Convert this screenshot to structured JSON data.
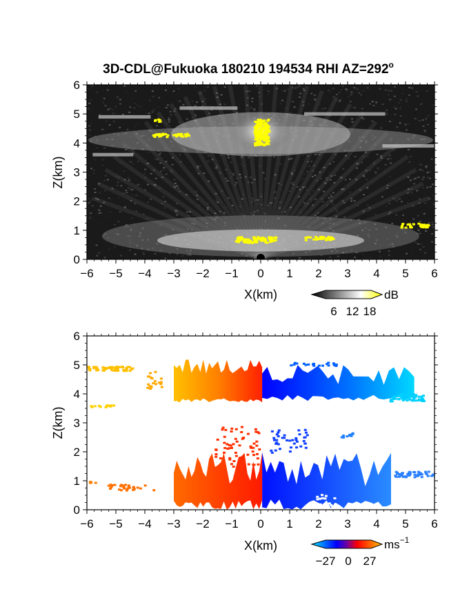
{
  "title": "3D-CDL@Fukuoka 180210 194534 RHI AZ=292",
  "title_superscript": "o",
  "chart_data": [
    {
      "type": "heatmap",
      "name": "reflectivity",
      "xlabel": "X(km)",
      "ylabel": "Z(km)",
      "xlim": [
        -6,
        6
      ],
      "ylim": [
        0,
        6
      ],
      "x_ticks": [
        "-6",
        "-5",
        "-4",
        "-3",
        "-2",
        "-1",
        "0",
        "1",
        "2",
        "3",
        "4",
        "5",
        "6"
      ],
      "y_ticks": [
        "0",
        "1",
        "2",
        "3",
        "4",
        "5",
        "6"
      ],
      "colorbar": {
        "unit": "dB",
        "ticks": [
          "6",
          "12",
          "18"
        ],
        "range": [
          0,
          24
        ],
        "colors": [
          "#000000",
          "#ffffff",
          "#ffff00"
        ]
      },
      "features": [
        {
          "label": "cloud-layer-upper",
          "x_range": [
            -6,
            6
          ],
          "z_range": [
            3.6,
            5.2
          ]
        },
        {
          "label": "cloud-core",
          "x_range": [
            -0.4,
            0.4
          ],
          "z_range": [
            3.9,
            4.8
          ]
        },
        {
          "label": "boundary-layer",
          "x_range": [
            -5,
            5
          ],
          "z_range": [
            0.4,
            1.3
          ]
        }
      ]
    },
    {
      "type": "heatmap",
      "name": "doppler-velocity",
      "xlabel": "X(km)",
      "ylabel": "Z(km)",
      "xlim": [
        -6,
        6
      ],
      "ylim": [
        0,
        6
      ],
      "x_ticks": [
        "-6",
        "-5",
        "-4",
        "-3",
        "-2",
        "-1",
        "0",
        "1",
        "2",
        "3",
        "4",
        "5",
        "6"
      ],
      "y_ticks": [
        "0",
        "1",
        "2",
        "3",
        "4",
        "5",
        "6"
      ],
      "colorbar": {
        "unit": "ms",
        "unit_superscript": "−1",
        "ticks": [
          "−27",
          "0",
          "27"
        ],
        "range": [
          -27,
          27
        ],
        "colors": [
          "#00e5ff",
          "#0000ff",
          "#ff0000",
          "#ffc000"
        ]
      },
      "features": [
        {
          "label": "upper-layer-positive",
          "x_range": [
            -3,
            0
          ],
          "z_range": [
            3.7,
            5.2
          ],
          "velocity": 15
        },
        {
          "label": "upper-layer-negative",
          "x_range": [
            0,
            5.3
          ],
          "z_range": [
            3.7,
            5.2
          ],
          "velocity": -18
        },
        {
          "label": "lower-layer-positive",
          "x_range": [
            -3,
            0
          ],
          "z_range": [
            0,
            2.2
          ],
          "velocity": 12
        },
        {
          "label": "lower-layer-negative",
          "x_range": [
            0,
            6
          ],
          "z_range": [
            0,
            2.2
          ],
          "velocity": -15
        }
      ]
    }
  ]
}
